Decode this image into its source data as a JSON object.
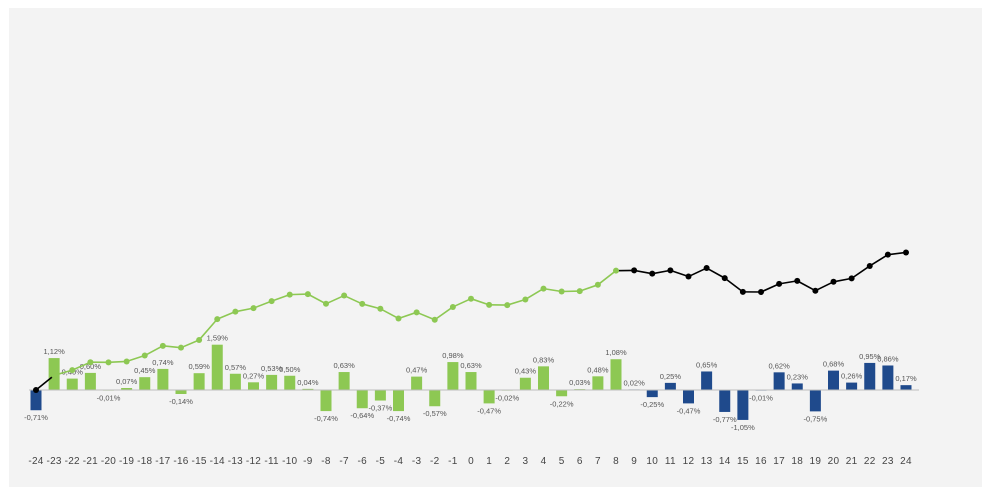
{
  "chart_data": {
    "type": "bar+line",
    "title": "",
    "xlabel": "",
    "ylabel": "",
    "grid": false,
    "x": [
      -24,
      -23,
      -22,
      -21,
      -20,
      -19,
      -18,
      -17,
      -16,
      -15,
      -14,
      -13,
      -12,
      -11,
      -10,
      -9,
      -8,
      -7,
      -6,
      -5,
      -4,
      -3,
      -2,
      -1,
      0,
      1,
      2,
      3,
      4,
      5,
      6,
      7,
      8,
      9,
      10,
      11,
      12,
      13,
      14,
      15,
      16,
      17,
      18,
      19,
      20,
      21,
      22,
      23,
      24
    ],
    "x_tick_labels": [
      "-24",
      "-23",
      "-22",
      "-21",
      "-20",
      "-19",
      "-18",
      "-17",
      "-16",
      "-15",
      "-14",
      "-13",
      "-12",
      "-11",
      "-10",
      "-9",
      "-8",
      "-7",
      "-6",
      "-5",
      "-4",
      "-3",
      "-2",
      "-1",
      "0",
      "1",
      "2",
      "3",
      "4",
      "5",
      "6",
      "7",
      "8",
      "9",
      "10",
      "11",
      "12",
      "13",
      "14",
      "15",
      "16",
      "17",
      "18",
      "19",
      "20",
      "21",
      "22",
      "23",
      "24"
    ],
    "bars": {
      "values": [
        -0.71,
        1.12,
        0.4,
        0.6,
        -0.01,
        0.07,
        0.45,
        0.74,
        -0.14,
        0.59,
        1.59,
        0.57,
        0.27,
        0.53,
        0.5,
        0.04,
        -0.74,
        0.63,
        -0.64,
        -0.37,
        -0.74,
        0.47,
        -0.57,
        0.98,
        0.63,
        -0.47,
        -0.02,
        0.43,
        0.83,
        -0.22,
        0.03,
        0.48,
        1.08,
        0.02,
        -0.25,
        0.25,
        -0.47,
        0.65,
        -0.77,
        -1.05,
        -0.01,
        0.62,
        0.23,
        -0.75,
        0.68,
        0.26,
        0.95,
        0.86,
        0.17
      ],
      "labels": [
        "-0,71%",
        "1,12%",
        "0,40%",
        "0,60%",
        "-0,01%",
        "0,07%",
        "0,45%",
        "0,74%",
        "-0,14%",
        "0,59%",
        "1,59%",
        "0,57%",
        "0,27%",
        "0,53%",
        "0,50%",
        "0,04%",
        "-0,74%",
        "0,63%",
        "-0,64%",
        "-0,37%",
        "-0,74%",
        "0,47%",
        "-0,57%",
        "0,98%",
        "0,63%",
        "-0,47%",
        "-0,02%",
        "0,43%",
        "0,83%",
        "-0,22%",
        "0,03%",
        "0,48%",
        "1,08%",
        "0,02%",
        "-0,25%",
        "0,25%",
        "-0,47%",
        "0,65%",
        "-0,77%",
        "-1,05%",
        "-0,01%",
        "0,62%",
        "0,23%",
        "-0,75%",
        "0,68%",
        "0,26%",
        "0,95%",
        "0,86%",
        "0,17%"
      ],
      "highlight_range": [
        -23,
        8
      ],
      "highlight_color": "#8dc853",
      "base_color": "#1f4a8c"
    },
    "line": {
      "cumulative_of": "bars.values",
      "start_value": 0,
      "highlight_range": [
        -24,
        8
      ],
      "highlight_color": "#8dc853",
      "base_color": "#000000"
    }
  }
}
